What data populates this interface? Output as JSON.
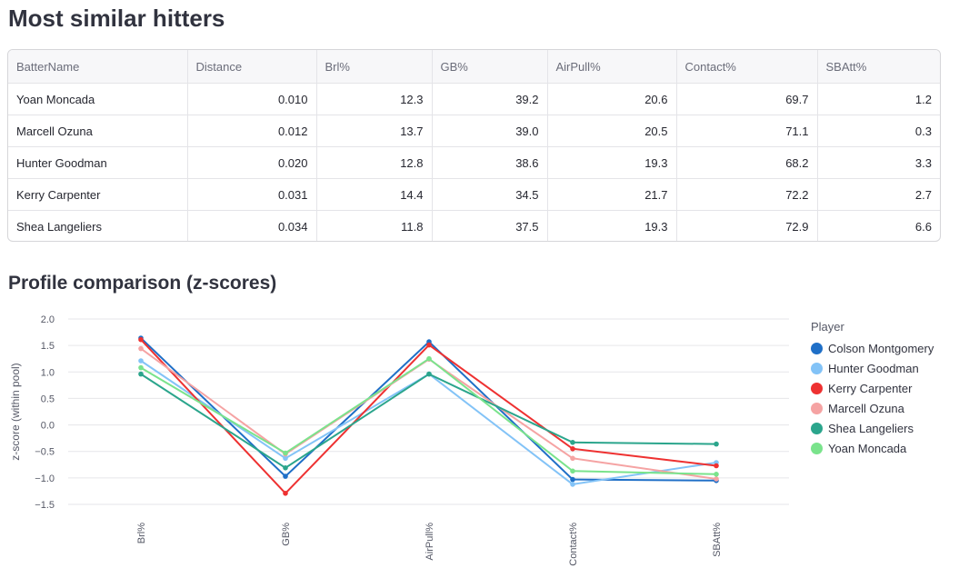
{
  "header": {
    "title": "Most similar hitters"
  },
  "table": {
    "columns": [
      "BatterName",
      "Distance",
      "Brl%",
      "GB%",
      "AirPull%",
      "Contact%",
      "SBAtt%"
    ],
    "rows": [
      [
        "Yoan Moncada",
        "0.010",
        "12.3",
        "39.2",
        "20.6",
        "69.7",
        "1.2"
      ],
      [
        "Marcell Ozuna",
        "0.012",
        "13.7",
        "39.0",
        "20.5",
        "71.1",
        "0.3"
      ],
      [
        "Hunter Goodman",
        "0.020",
        "12.8",
        "38.6",
        "19.3",
        "68.2",
        "3.3"
      ],
      [
        "Kerry Carpenter",
        "0.031",
        "14.4",
        "34.5",
        "21.7",
        "72.2",
        "2.7"
      ],
      [
        "Shea Langeliers",
        "0.034",
        "11.8",
        "37.5",
        "19.3",
        "72.9",
        "6.6"
      ]
    ]
  },
  "chart_section": {
    "title": "Profile comparison (z-scores)"
  },
  "chart_data": {
    "type": "line",
    "title": "Profile comparison (z-scores)",
    "xlabel": "",
    "ylabel": "z-score (within pool)",
    "categories": [
      "Brl%",
      "GB%",
      "AirPull%",
      "Contact%",
      "SBAtt%"
    ],
    "ylim": [
      -1.5,
      2.0
    ],
    "yticks": [
      2.0,
      1.5,
      1.0,
      0.5,
      0.0,
      -0.5,
      -1.0,
      -1.5
    ],
    "ytick_labels": [
      "2.0",
      "1.5",
      "1.0",
      "0.5",
      "0.0",
      "−0.5",
      "−1.0",
      "−1.5"
    ],
    "legend_title": "Player",
    "series": [
      {
        "name": "Colson Montgomery",
        "color": "#1f6fc7",
        "values": [
          1.64,
          -0.97,
          1.57,
          -1.03,
          -1.05
        ]
      },
      {
        "name": "Hunter Goodman",
        "color": "#83c3f7",
        "values": [
          1.21,
          -0.63,
          0.96,
          -1.12,
          -0.71
        ]
      },
      {
        "name": "Kerry Carpenter",
        "color": "#ee3131",
        "values": [
          1.61,
          -1.29,
          1.51,
          -0.45,
          -0.77
        ]
      },
      {
        "name": "Marcell Ozuna",
        "color": "#f5a3a3",
        "values": [
          1.44,
          -0.55,
          1.24,
          -0.63,
          -1.02
        ]
      },
      {
        "name": "Shea Langeliers",
        "color": "#2ba58c",
        "values": [
          0.96,
          -0.81,
          0.96,
          -0.33,
          -0.36
        ]
      },
      {
        "name": "Yoan Moncada",
        "color": "#7ae38c",
        "values": [
          1.08,
          -0.53,
          1.25,
          -0.87,
          -0.93
        ]
      }
    ]
  }
}
